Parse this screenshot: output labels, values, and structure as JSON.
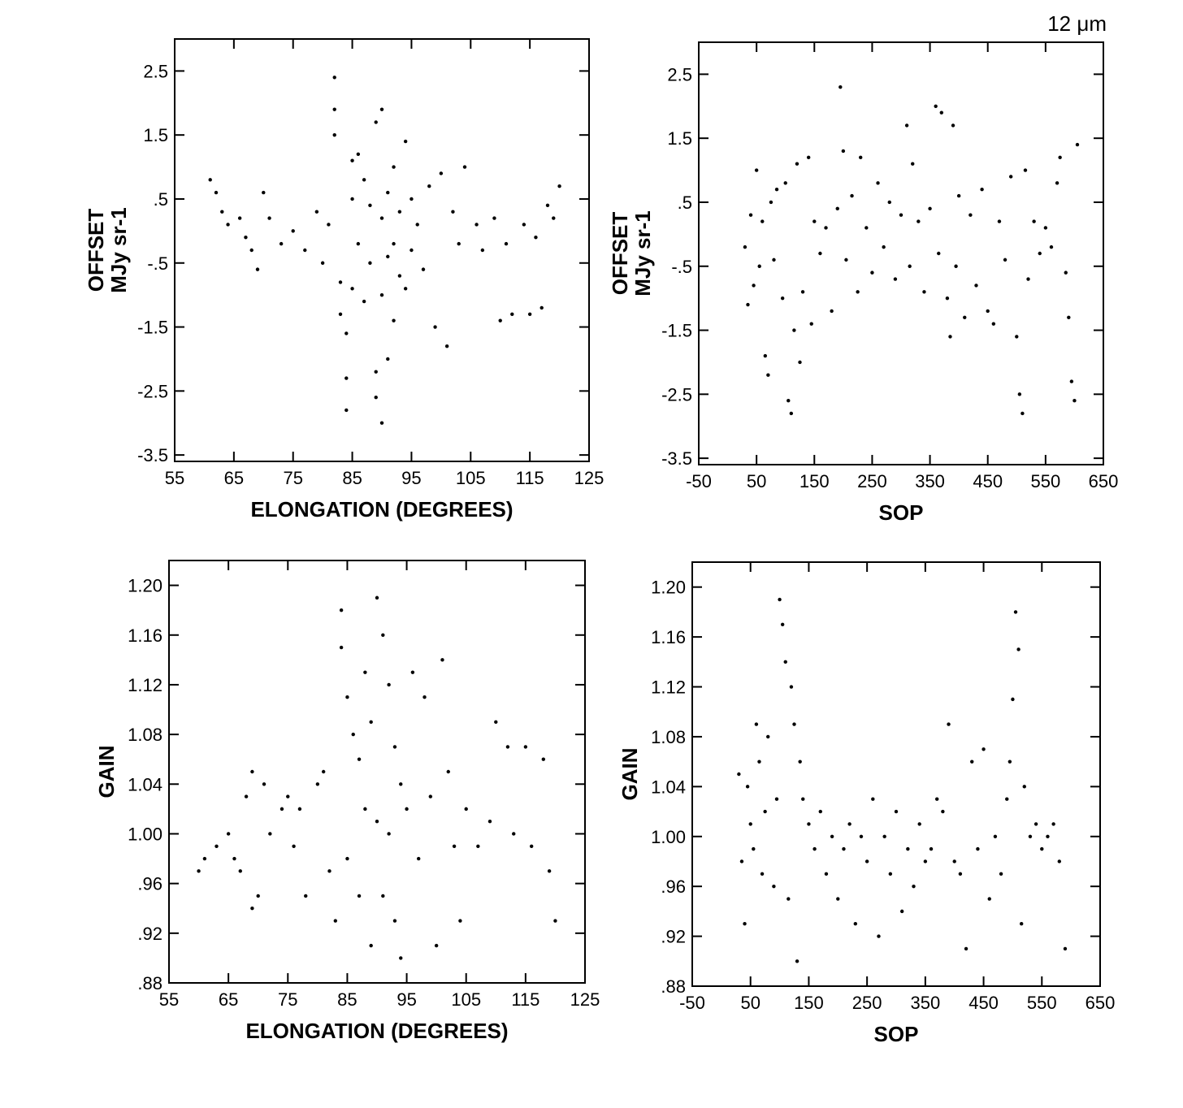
{
  "figure_label": "12 μm",
  "chart_data": [
    {
      "id": "offset-vs-elongation",
      "type": "scatter",
      "xlabel": "ELONGATION (DEGREES)",
      "ylabel_lines": [
        "OFFSET",
        "MJy sr-1"
      ],
      "xlim": [
        55,
        125
      ],
      "ylim": [
        -3.6,
        3.0
      ],
      "xticks": [
        55,
        65,
        75,
        85,
        95,
        105,
        115,
        125
      ],
      "xtick_labels": [
        "55",
        "65",
        "75",
        "85",
        "95",
        "105",
        "115",
        "125"
      ],
      "yticks": [
        2.5,
        1.5,
        0.5,
        -0.5,
        -1.5,
        -2.5,
        -3.5
      ],
      "ytick_labels": [
        "2.5",
        "1.5",
        ".5",
        "-.5",
        "-1.5",
        "-2.5",
        "-3.5"
      ],
      "points": [
        [
          61,
          0.8
        ],
        [
          62,
          0.6
        ],
        [
          63,
          0.3
        ],
        [
          64,
          0.1
        ],
        [
          66,
          0.2
        ],
        [
          67,
          -0.1
        ],
        [
          68,
          -0.3
        ],
        [
          69,
          -0.6
        ],
        [
          70,
          0.6
        ],
        [
          71,
          0.2
        ],
        [
          73,
          -0.2
        ],
        [
          75,
          0.0
        ],
        [
          77,
          -0.3
        ],
        [
          79,
          0.3
        ],
        [
          80,
          -0.5
        ],
        [
          81,
          0.1
        ],
        [
          82,
          2.4
        ],
        [
          82,
          1.9
        ],
        [
          82,
          1.5
        ],
        [
          83,
          -0.8
        ],
        [
          83,
          -1.3
        ],
        [
          84,
          -1.6
        ],
        [
          84,
          -2.3
        ],
        [
          84,
          -2.8
        ],
        [
          85,
          1.1
        ],
        [
          85,
          0.5
        ],
        [
          85,
          -0.9
        ],
        [
          86,
          1.2
        ],
        [
          86,
          -0.2
        ],
        [
          87,
          0.8
        ],
        [
          87,
          -1.1
        ],
        [
          88,
          0.4
        ],
        [
          88,
          -0.5
        ],
        [
          89,
          1.7
        ],
        [
          89,
          -2.2
        ],
        [
          89,
          -2.6
        ],
        [
          90,
          1.9
        ],
        [
          90,
          0.2
        ],
        [
          90,
          -1.0
        ],
        [
          90,
          -3.0
        ],
        [
          91,
          0.6
        ],
        [
          91,
          -0.4
        ],
        [
          91,
          -2.0
        ],
        [
          92,
          1.0
        ],
        [
          92,
          -0.2
        ],
        [
          92,
          -1.4
        ],
        [
          93,
          0.3
        ],
        [
          93,
          -0.7
        ],
        [
          94,
          -0.9
        ],
        [
          94,
          1.4
        ],
        [
          95,
          0.5
        ],
        [
          95,
          -0.3
        ],
        [
          96,
          0.1
        ],
        [
          97,
          -0.6
        ],
        [
          98,
          0.7
        ],
        [
          99,
          -1.5
        ],
        [
          100,
          0.9
        ],
        [
          101,
          -1.8
        ],
        [
          102,
          0.3
        ],
        [
          103,
          -0.2
        ],
        [
          104,
          1.0
        ],
        [
          106,
          0.1
        ],
        [
          107,
          -0.3
        ],
        [
          109,
          0.2
        ],
        [
          110,
          -1.4
        ],
        [
          111,
          -0.2
        ],
        [
          112,
          -1.3
        ],
        [
          114,
          0.1
        ],
        [
          115,
          -1.3
        ],
        [
          116,
          -0.1
        ],
        [
          117,
          -1.2
        ],
        [
          118,
          0.4
        ],
        [
          119,
          0.2
        ],
        [
          120,
          0.7
        ]
      ]
    },
    {
      "id": "offset-vs-sop",
      "type": "scatter",
      "xlabel": "SOP",
      "ylabel_lines": [
        "OFFSET",
        "MJy sr-1"
      ],
      "xlim": [
        -50,
        650
      ],
      "ylim": [
        -3.6,
        3.0
      ],
      "xticks": [
        -50,
        50,
        150,
        250,
        350,
        450,
        550,
        650
      ],
      "xtick_labels": [
        "-50",
        "50",
        "150",
        "250",
        "350",
        "450",
        "550",
        "650"
      ],
      "yticks": [
        2.5,
        1.5,
        0.5,
        -0.5,
        -1.5,
        -2.5,
        -3.5
      ],
      "ytick_labels": [
        "2.5",
        "1.5",
        ".5",
        "-.5",
        "-1.5",
        "-2.5",
        "-3.5"
      ],
      "points": [
        [
          30,
          -0.2
        ],
        [
          35,
          -1.1
        ],
        [
          40,
          0.3
        ],
        [
          45,
          -0.8
        ],
        [
          50,
          1.0
        ],
        [
          55,
          -0.5
        ],
        [
          60,
          0.2
        ],
        [
          65,
          -1.9
        ],
        [
          70,
          -2.2
        ],
        [
          75,
          0.5
        ],
        [
          80,
          -0.4
        ],
        [
          85,
          0.7
        ],
        [
          95,
          -1.0
        ],
        [
          100,
          0.8
        ],
        [
          105,
          -2.6
        ],
        [
          110,
          -2.8
        ],
        [
          115,
          -1.5
        ],
        [
          120,
          1.1
        ],
        [
          125,
          -2.0
        ],
        [
          130,
          -0.9
        ],
        [
          140,
          1.2
        ],
        [
          145,
          -1.4
        ],
        [
          150,
          0.2
        ],
        [
          160,
          -0.3
        ],
        [
          170,
          0.1
        ],
        [
          180,
          -1.2
        ],
        [
          190,
          0.4
        ],
        [
          195,
          2.3
        ],
        [
          200,
          1.3
        ],
        [
          205,
          -0.4
        ],
        [
          215,
          0.6
        ],
        [
          225,
          -0.9
        ],
        [
          230,
          1.2
        ],
        [
          240,
          0.1
        ],
        [
          250,
          -0.6
        ],
        [
          260,
          0.8
        ],
        [
          270,
          -0.2
        ],
        [
          280,
          0.5
        ],
        [
          290,
          -0.7
        ],
        [
          300,
          0.3
        ],
        [
          310,
          1.7
        ],
        [
          315,
          -0.5
        ],
        [
          320,
          1.1
        ],
        [
          330,
          0.2
        ],
        [
          340,
          -0.9
        ],
        [
          350,
          0.4
        ],
        [
          360,
          2.0
        ],
        [
          365,
          -0.3
        ],
        [
          370,
          1.9
        ],
        [
          380,
          -1.0
        ],
        [
          385,
          -1.6
        ],
        [
          390,
          1.7
        ],
        [
          395,
          -0.5
        ],
        [
          400,
          0.6
        ],
        [
          410,
          -1.3
        ],
        [
          420,
          0.3
        ],
        [
          430,
          -0.8
        ],
        [
          440,
          0.7
        ],
        [
          450,
          -1.2
        ],
        [
          460,
          -1.4
        ],
        [
          470,
          0.2
        ],
        [
          480,
          -0.4
        ],
        [
          490,
          0.9
        ],
        [
          500,
          -1.6
        ],
        [
          505,
          -2.5
        ],
        [
          510,
          -2.8
        ],
        [
          515,
          1.0
        ],
        [
          520,
          -0.7
        ],
        [
          530,
          0.2
        ],
        [
          540,
          -0.3
        ],
        [
          550,
          0.1
        ],
        [
          560,
          -0.2
        ],
        [
          570,
          0.8
        ],
        [
          575,
          1.2
        ],
        [
          585,
          -0.6
        ],
        [
          590,
          -1.3
        ],
        [
          595,
          -2.3
        ],
        [
          600,
          -2.6
        ],
        [
          605,
          1.4
        ]
      ]
    },
    {
      "id": "gain-vs-elongation",
      "type": "scatter",
      "xlabel": "ELONGATION (DEGREES)",
      "ylabel_lines": [
        "GAIN"
      ],
      "xlim": [
        55,
        125
      ],
      "ylim": [
        0.88,
        1.22
      ],
      "xticks": [
        55,
        65,
        75,
        85,
        95,
        105,
        115,
        125
      ],
      "xtick_labels": [
        "55",
        "65",
        "75",
        "85",
        "95",
        "105",
        "115",
        "125"
      ],
      "yticks": [
        1.2,
        1.16,
        1.12,
        1.08,
        1.04,
        1.0,
        0.96,
        0.92,
        0.88
      ],
      "ytick_labels": [
        "1.20",
        "1.16",
        "1.12",
        "1.08",
        "1.04",
        "1.00",
        ".96",
        ".92",
        ".88"
      ],
      "points": [
        [
          60,
          0.97
        ],
        [
          61,
          0.98
        ],
        [
          63,
          0.99
        ],
        [
          65,
          1.0
        ],
        [
          66,
          0.98
        ],
        [
          67,
          0.97
        ],
        [
          68,
          1.03
        ],
        [
          69,
          1.05
        ],
        [
          69,
          0.94
        ],
        [
          70,
          0.95
        ],
        [
          71,
          1.04
        ],
        [
          72,
          1.0
        ],
        [
          74,
          1.02
        ],
        [
          75,
          1.03
        ],
        [
          76,
          0.99
        ],
        [
          77,
          1.02
        ],
        [
          78,
          0.95
        ],
        [
          80,
          1.04
        ],
        [
          81,
          1.05
        ],
        [
          82,
          0.97
        ],
        [
          83,
          0.93
        ],
        [
          84,
          1.18
        ],
        [
          84,
          1.15
        ],
        [
          85,
          1.11
        ],
        [
          85,
          0.98
        ],
        [
          86,
          1.08
        ],
        [
          87,
          1.06
        ],
        [
          87,
          0.95
        ],
        [
          88,
          1.13
        ],
        [
          88,
          1.02
        ],
        [
          89,
          0.91
        ],
        [
          89,
          1.09
        ],
        [
          90,
          1.19
        ],
        [
          90,
          1.01
        ],
        [
          91,
          1.16
        ],
        [
          91,
          0.95
        ],
        [
          92,
          1.12
        ],
        [
          92,
          1.0
        ],
        [
          93,
          1.07
        ],
        [
          93,
          0.93
        ],
        [
          94,
          1.04
        ],
        [
          94,
          0.9
        ],
        [
          95,
          1.02
        ],
        [
          96,
          1.13
        ],
        [
          97,
          0.98
        ],
        [
          98,
          1.11
        ],
        [
          99,
          1.03
        ],
        [
          100,
          0.91
        ],
        [
          101,
          1.14
        ],
        [
          102,
          1.05
        ],
        [
          103,
          0.99
        ],
        [
          104,
          0.93
        ],
        [
          105,
          1.02
        ],
        [
          107,
          0.99
        ],
        [
          109,
          1.01
        ],
        [
          110,
          1.09
        ],
        [
          112,
          1.07
        ],
        [
          113,
          1.0
        ],
        [
          115,
          1.07
        ],
        [
          116,
          0.99
        ],
        [
          118,
          1.06
        ],
        [
          119,
          0.97
        ],
        [
          120,
          0.93
        ]
      ]
    },
    {
      "id": "gain-vs-sop",
      "type": "scatter",
      "xlabel": "SOP",
      "ylabel_lines": [
        "GAIN"
      ],
      "xlim": [
        -50,
        650
      ],
      "ylim": [
        0.88,
        1.22
      ],
      "xticks": [
        -50,
        50,
        150,
        250,
        350,
        450,
        550,
        650
      ],
      "xtick_labels": [
        "-50",
        "50",
        "150",
        "250",
        "350",
        "450",
        "550",
        "650"
      ],
      "yticks": [
        1.2,
        1.16,
        1.12,
        1.08,
        1.04,
        1.0,
        0.96,
        0.92,
        0.88
      ],
      "ytick_labels": [
        "1.20",
        "1.16",
        "1.12",
        "1.08",
        "1.04",
        "1.00",
        ".96",
        ".92",
        ".88"
      ],
      "points": [
        [
          30,
          1.05
        ],
        [
          35,
          0.98
        ],
        [
          40,
          0.93
        ],
        [
          45,
          1.04
        ],
        [
          50,
          1.01
        ],
        [
          55,
          0.99
        ],
        [
          60,
          1.09
        ],
        [
          65,
          1.06
        ],
        [
          70,
          0.97
        ],
        [
          75,
          1.02
        ],
        [
          80,
          1.08
        ],
        [
          90,
          0.96
        ],
        [
          95,
          1.03
        ],
        [
          100,
          1.19
        ],
        [
          105,
          1.17
        ],
        [
          110,
          1.14
        ],
        [
          115,
          0.95
        ],
        [
          120,
          1.12
        ],
        [
          125,
          1.09
        ],
        [
          130,
          0.9
        ],
        [
          135,
          1.06
        ],
        [
          140,
          1.03
        ],
        [
          150,
          1.01
        ],
        [
          160,
          0.99
        ],
        [
          170,
          1.02
        ],
        [
          180,
          0.97
        ],
        [
          190,
          1.0
        ],
        [
          200,
          0.95
        ],
        [
          210,
          0.99
        ],
        [
          220,
          1.01
        ],
        [
          230,
          0.93
        ],
        [
          240,
          1.0
        ],
        [
          250,
          0.98
        ],
        [
          260,
          1.03
        ],
        [
          270,
          0.92
        ],
        [
          280,
          1.0
        ],
        [
          290,
          0.97
        ],
        [
          300,
          1.02
        ],
        [
          310,
          0.94
        ],
        [
          320,
          0.99
        ],
        [
          330,
          0.96
        ],
        [
          340,
          1.01
        ],
        [
          350,
          0.98
        ],
        [
          360,
          0.99
        ],
        [
          370,
          1.03
        ],
        [
          380,
          1.02
        ],
        [
          390,
          1.09
        ],
        [
          400,
          0.98
        ],
        [
          410,
          0.97
        ],
        [
          420,
          0.91
        ],
        [
          430,
          1.06
        ],
        [
          440,
          0.99
        ],
        [
          450,
          1.07
        ],
        [
          460,
          0.95
        ],
        [
          470,
          1.0
        ],
        [
          480,
          0.97
        ],
        [
          490,
          1.03
        ],
        [
          495,
          1.06
        ],
        [
          500,
          1.11
        ],
        [
          505,
          1.18
        ],
        [
          510,
          1.15
        ],
        [
          515,
          0.93
        ],
        [
          520,
          1.04
        ],
        [
          530,
          1.0
        ],
        [
          540,
          1.01
        ],
        [
          550,
          0.99
        ],
        [
          560,
          1.0
        ],
        [
          570,
          1.01
        ],
        [
          580,
          0.98
        ],
        [
          590,
          0.91
        ]
      ]
    }
  ]
}
